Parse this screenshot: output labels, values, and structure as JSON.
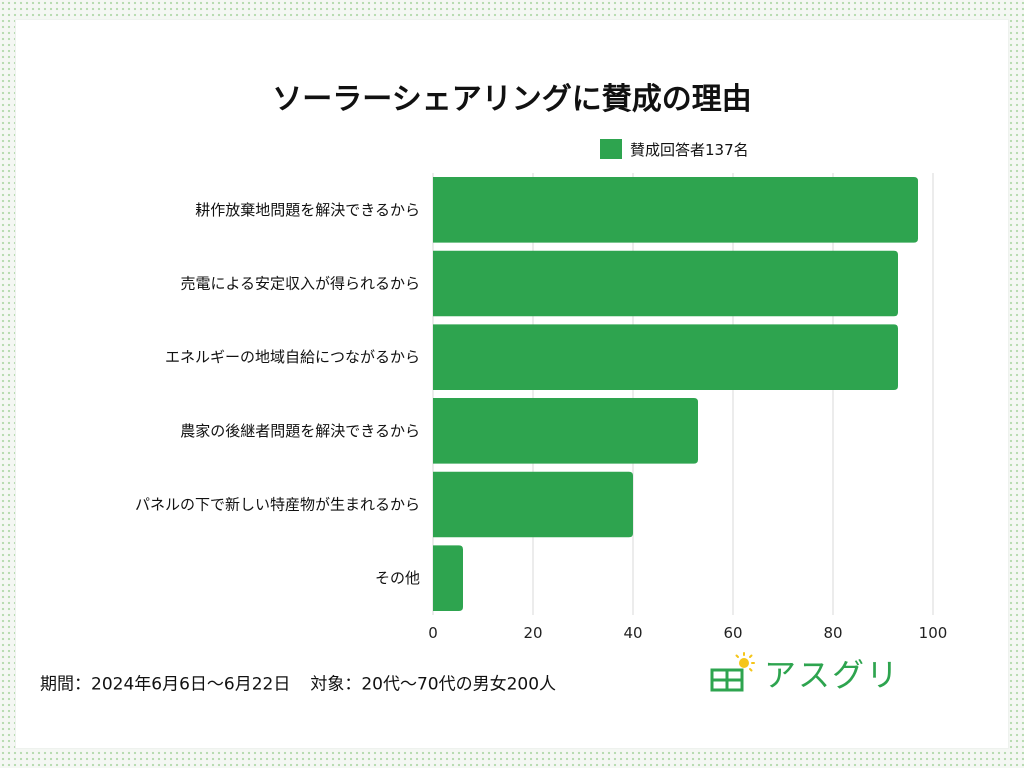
{
  "chart_data": {
    "type": "bar",
    "orientation": "horizontal",
    "title": "ソーラーシェアリングに賛成の理由",
    "categories": [
      "耕作放棄地問題を解決できるから",
      "売電による安定収入が得られるから",
      "エネルギーの地域自給につながるから",
      "農家の後継者問題を解決できるから",
      "パネルの下で新しい特産物が生まれるから",
      "その他"
    ],
    "series": [
      {
        "name": "賛成回答者137名",
        "color": "#2ea44f",
        "values": [
          97,
          93,
          93,
          53,
          40,
          6
        ]
      }
    ],
    "xlim": [
      0,
      100
    ],
    "xticks": [
      0,
      20,
      40,
      60,
      80,
      100
    ],
    "grid": true,
    "legend_position": "top-right"
  },
  "footer": {
    "period": "期間：2024年6月6日～6月22日",
    "target": "対象：20代～70代の男女200人"
  },
  "brand": {
    "name": "アスグリ"
  }
}
